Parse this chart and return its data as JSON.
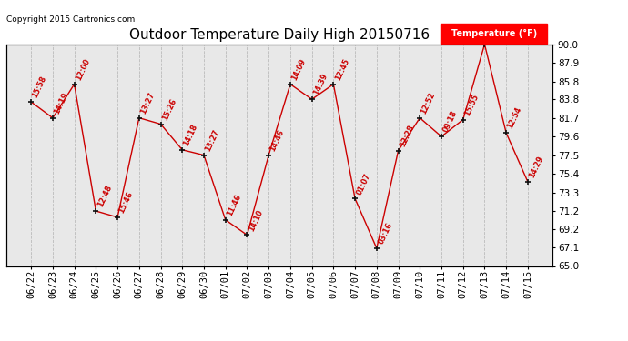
{
  "title": "Outdoor Temperature Daily High 20150716",
  "copyright": "Copyright 2015 Cartronics.com",
  "legend_label": "Temperature (°F)",
  "dates": [
    "06/22",
    "06/23",
    "06/24",
    "06/25",
    "06/26",
    "06/27",
    "06/28",
    "06/29",
    "06/30",
    "07/01",
    "07/02",
    "07/03",
    "07/04",
    "07/05",
    "07/06",
    "07/07",
    "07/08",
    "07/09",
    "07/10",
    "07/11",
    "07/12",
    "07/13",
    "07/14",
    "07/15"
  ],
  "temps": [
    83.5,
    81.7,
    85.5,
    71.2,
    70.5,
    81.7,
    81.0,
    78.1,
    77.5,
    70.2,
    68.5,
    77.5,
    85.5,
    83.8,
    85.5,
    72.6,
    67.0,
    78.0,
    81.7,
    79.6,
    81.5,
    90.0,
    80.0,
    74.5
  ],
  "time_labels": [
    "15:58",
    "14:19",
    "12:00",
    "12:48",
    "15:46",
    "13:27",
    "15:26",
    "14:18",
    "13:27",
    "11:46",
    "14:10",
    "14:46",
    "14:09",
    "14:39",
    "12:45",
    "01:07",
    "03:16",
    "12:28",
    "12:52",
    "09:18",
    "15:55",
    "",
    "12:54",
    "14:29"
  ],
  "ylim_min": 65.0,
  "ylim_max": 90.0,
  "yticks": [
    65.0,
    67.1,
    69.2,
    71.2,
    73.3,
    75.4,
    77.5,
    79.6,
    81.7,
    83.8,
    85.8,
    87.9,
    90.0
  ],
  "line_color": "#cc0000",
  "marker_color": "#111111",
  "bg_color": "#e8e8e8",
  "grid_color": "#bbbbbb",
  "title_fontsize": 11,
  "tick_fontsize": 7.5,
  "label_fontsize": 5.8
}
